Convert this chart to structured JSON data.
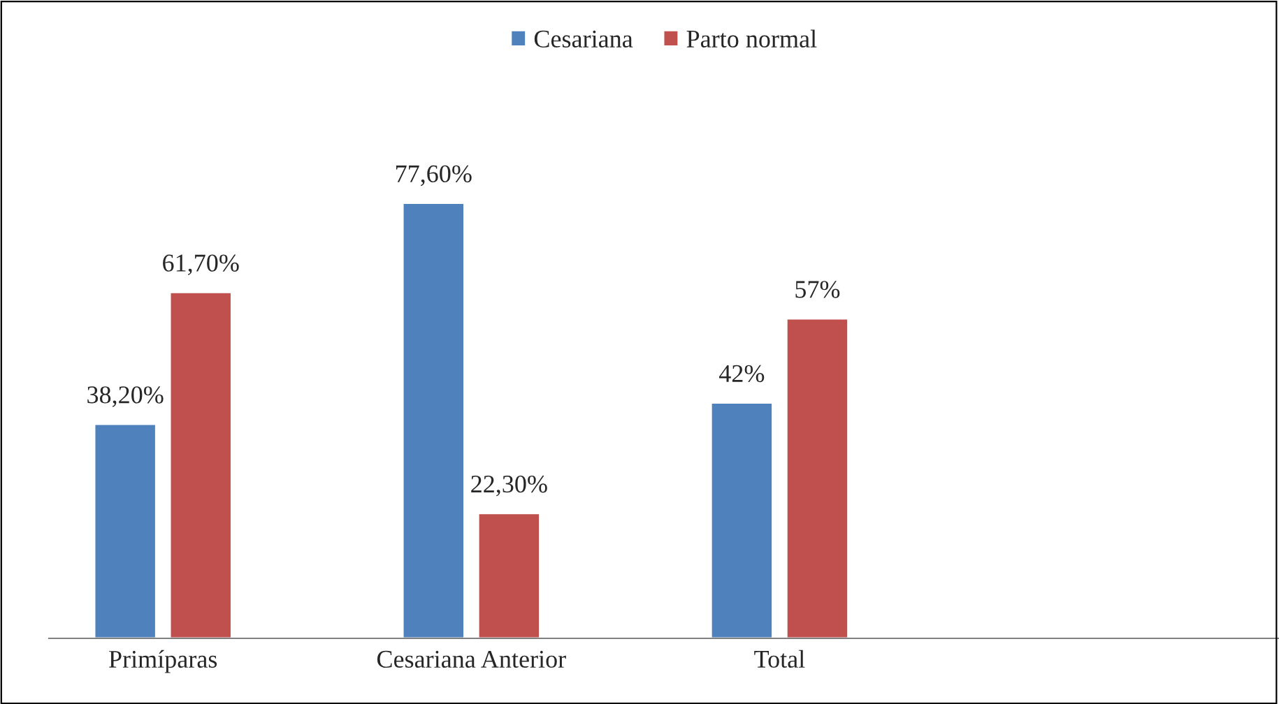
{
  "chart_data": {
    "type": "bar",
    "categories": [
      "Primíparas",
      "Cesariana Anterior",
      "Total",
      null
    ],
    "series": [
      {
        "name": "Cesariana",
        "color": "#4f81bd",
        "values": [
          38.2,
          77.6,
          42,
          null
        ],
        "value_labels": [
          "38,20%",
          "77,60%",
          "42%",
          null
        ]
      },
      {
        "name": "Parto normal",
        "color": "#c0504d",
        "values": [
          61.7,
          22.3,
          57,
          null
        ],
        "value_labels": [
          "61,70%",
          "22,30%",
          "57%",
          null
        ]
      }
    ],
    "legend": "top",
    "grid": false
  }
}
